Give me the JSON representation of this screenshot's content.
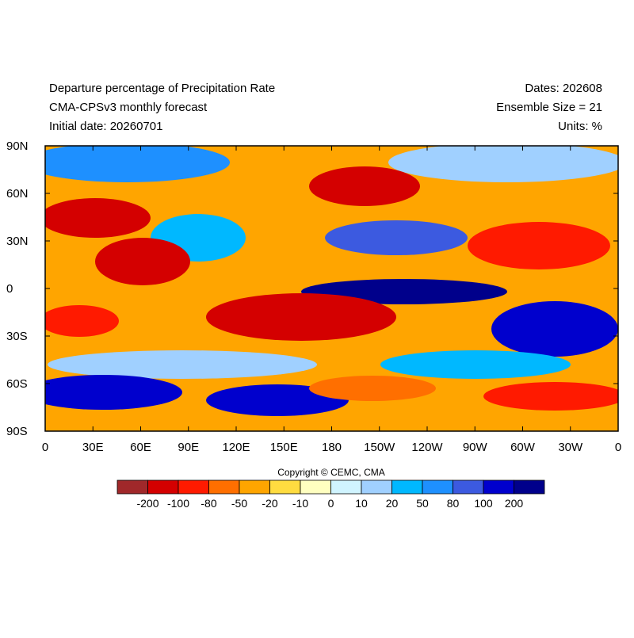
{
  "header": {
    "title": "Departure percentage of Precipitation Rate",
    "model": "CMA-CPSv3 monthly forecast",
    "initial_date": "Initial date: 20260701",
    "dates": "Dates: 202608",
    "ensemble": "Ensemble Size = 21",
    "units": "Units: %"
  },
  "map": {
    "lat_ticks": [
      "90N",
      "60N",
      "30N",
      "0",
      "30S",
      "60S",
      "90S"
    ],
    "lon_ticks": [
      "0",
      "30E",
      "60E",
      "90E",
      "120E",
      "150E",
      "180",
      "150W",
      "120W",
      "90W",
      "60W",
      "30W",
      "0"
    ]
  },
  "copyright": "Copyright © CEMC, CMA",
  "colorbar": {
    "colors": [
      "#a0282a",
      "#d40000",
      "#ff1a00",
      "#ff6f00",
      "#ffa500",
      "#ffdc40",
      "#ffffc0",
      "#d0f4ff",
      "#a0d0ff",
      "#00b8ff",
      "#1e90ff",
      "#3c5ae0",
      "#0000cd",
      "#00008b"
    ],
    "labels": [
      "-200",
      "-100",
      "-80",
      "-50",
      "-20",
      "-10",
      "0",
      "10",
      "20",
      "50",
      "80",
      "100",
      "200"
    ]
  }
}
